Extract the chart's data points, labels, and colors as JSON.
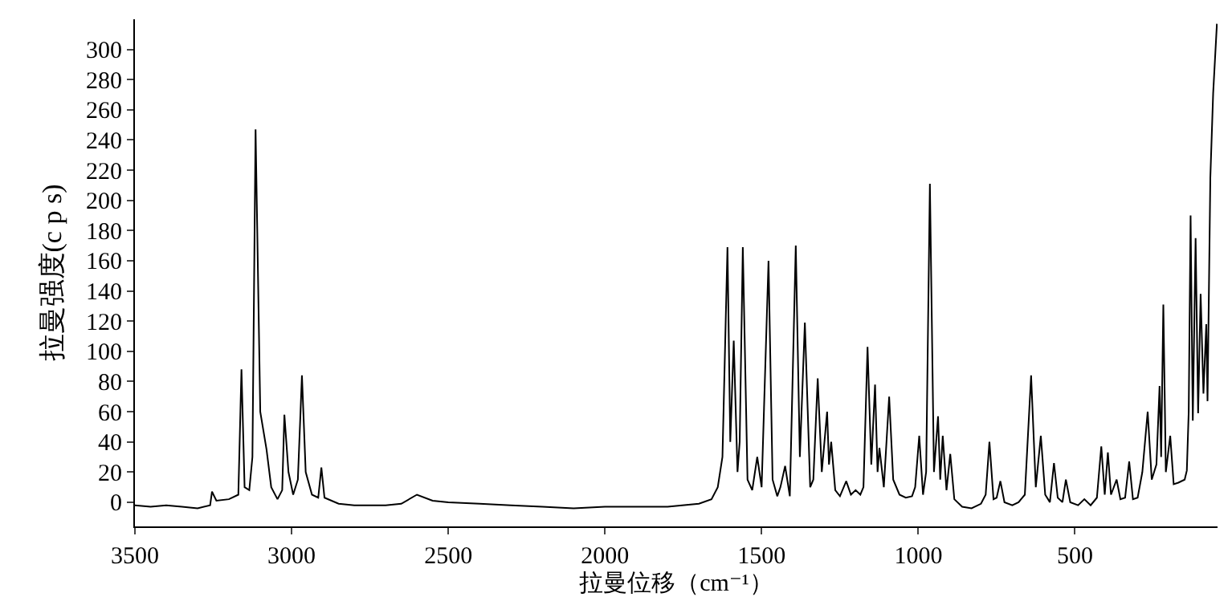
{
  "chart_data": {
    "type": "line",
    "xlabel": "拉曼位移（cm⁻¹）",
    "ylabel": "拉曼强度(c p s)",
    "x": [
      3500,
      3450,
      3400,
      3350,
      3300,
      3260,
      3254,
      3240,
      3200,
      3170,
      3160,
      3150,
      3135,
      3125,
      3115,
      3100,
      3080,
      3065,
      3045,
      3030,
      3023,
      3010,
      2995,
      2980,
      2967,
      2955,
      2935,
      2915,
      2905,
      2895,
      2850,
      2800,
      2700,
      2650,
      2600,
      2550,
      2500,
      2400,
      2300,
      2200,
      2100,
      2000,
      1900,
      1800,
      1700,
      1660,
      1640,
      1625,
      1609,
      1600,
      1589,
      1577,
      1570,
      1560,
      1545,
      1530,
      1514,
      1500,
      1478,
      1465,
      1450,
      1440,
      1425,
      1410,
      1391,
      1378,
      1362,
      1345,
      1335,
      1321,
      1308,
      1291,
      1285,
      1278,
      1265,
      1250,
      1230,
      1215,
      1200,
      1185,
      1175,
      1162,
      1150,
      1138,
      1130,
      1124,
      1110,
      1093,
      1080,
      1060,
      1040,
      1020,
      1010,
      997,
      985,
      975,
      963,
      950,
      937,
      930,
      922,
      910,
      898,
      885,
      860,
      830,
      800,
      785,
      773,
      760,
      750,
      738,
      725,
      700,
      680,
      660,
      640,
      625,
      609,
      595,
      580,
      567,
      555,
      540,
      529,
      515,
      490,
      470,
      450,
      430,
      416,
      405,
      395,
      385,
      367,
      355,
      340,
      327,
      315,
      300,
      285,
      268,
      255,
      240,
      230,
      225,
      218,
      210,
      196,
      185,
      170,
      150,
      143,
      137,
      131,
      124,
      115,
      107,
      99,
      90,
      81,
      77,
      68,
      59,
      47
    ],
    "series": [
      {
        "color": "#000000",
        "values": [
          -2,
          -3,
          -2,
          -3,
          -4,
          -2,
          7,
          1,
          2,
          5,
          88,
          10,
          8,
          30,
          247,
          60,
          35,
          10,
          2,
          8,
          58,
          20,
          5,
          15,
          84,
          20,
          5,
          3,
          23,
          3,
          -1,
          -2,
          -2,
          -1,
          5,
          1,
          0,
          -1,
          -2,
          -3,
          -4,
          -3,
          -3,
          -3,
          -1,
          2,
          10,
          30,
          169,
          40,
          107,
          20,
          40,
          169,
          15,
          8,
          30,
          10,
          160,
          15,
          4,
          10,
          24,
          4,
          170,
          30,
          119,
          10,
          15,
          82,
          20,
          60,
          25,
          40,
          8,
          4,
          14,
          5,
          8,
          5,
          10,
          103,
          25,
          78,
          20,
          36,
          10,
          70,
          15,
          5,
          3,
          4,
          10,
          44,
          5,
          20,
          211,
          20,
          57,
          15,
          44,
          8,
          32,
          2,
          -3,
          -4,
          -1,
          5,
          40,
          2,
          3,
          14,
          0,
          -2,
          0,
          5,
          84,
          10,
          44,
          5,
          0,
          26,
          3,
          0,
          15,
          0,
          -2,
          2,
          -2,
          3,
          37,
          5,
          33,
          5,
          15,
          2,
          3,
          27,
          2,
          3,
          20,
          60,
          15,
          25,
          77,
          30,
          131,
          20,
          44,
          12,
          13,
          15,
          21,
          60,
          190,
          54,
          175,
          59,
          138,
          72,
          118,
          67,
          215,
          271,
          317
        ]
      }
    ],
    "xlim": [
      3500,
      45
    ],
    "xticks": [
      3500,
      3000,
      2500,
      2000,
      1500,
      1000,
      500
    ],
    "ylim": [
      -16,
      320
    ],
    "yticks": [
      0,
      20,
      40,
      60,
      80,
      100,
      120,
      140,
      160,
      180,
      200,
      220,
      240,
      260,
      280,
      300
    ],
    "line_style": "solid"
  }
}
